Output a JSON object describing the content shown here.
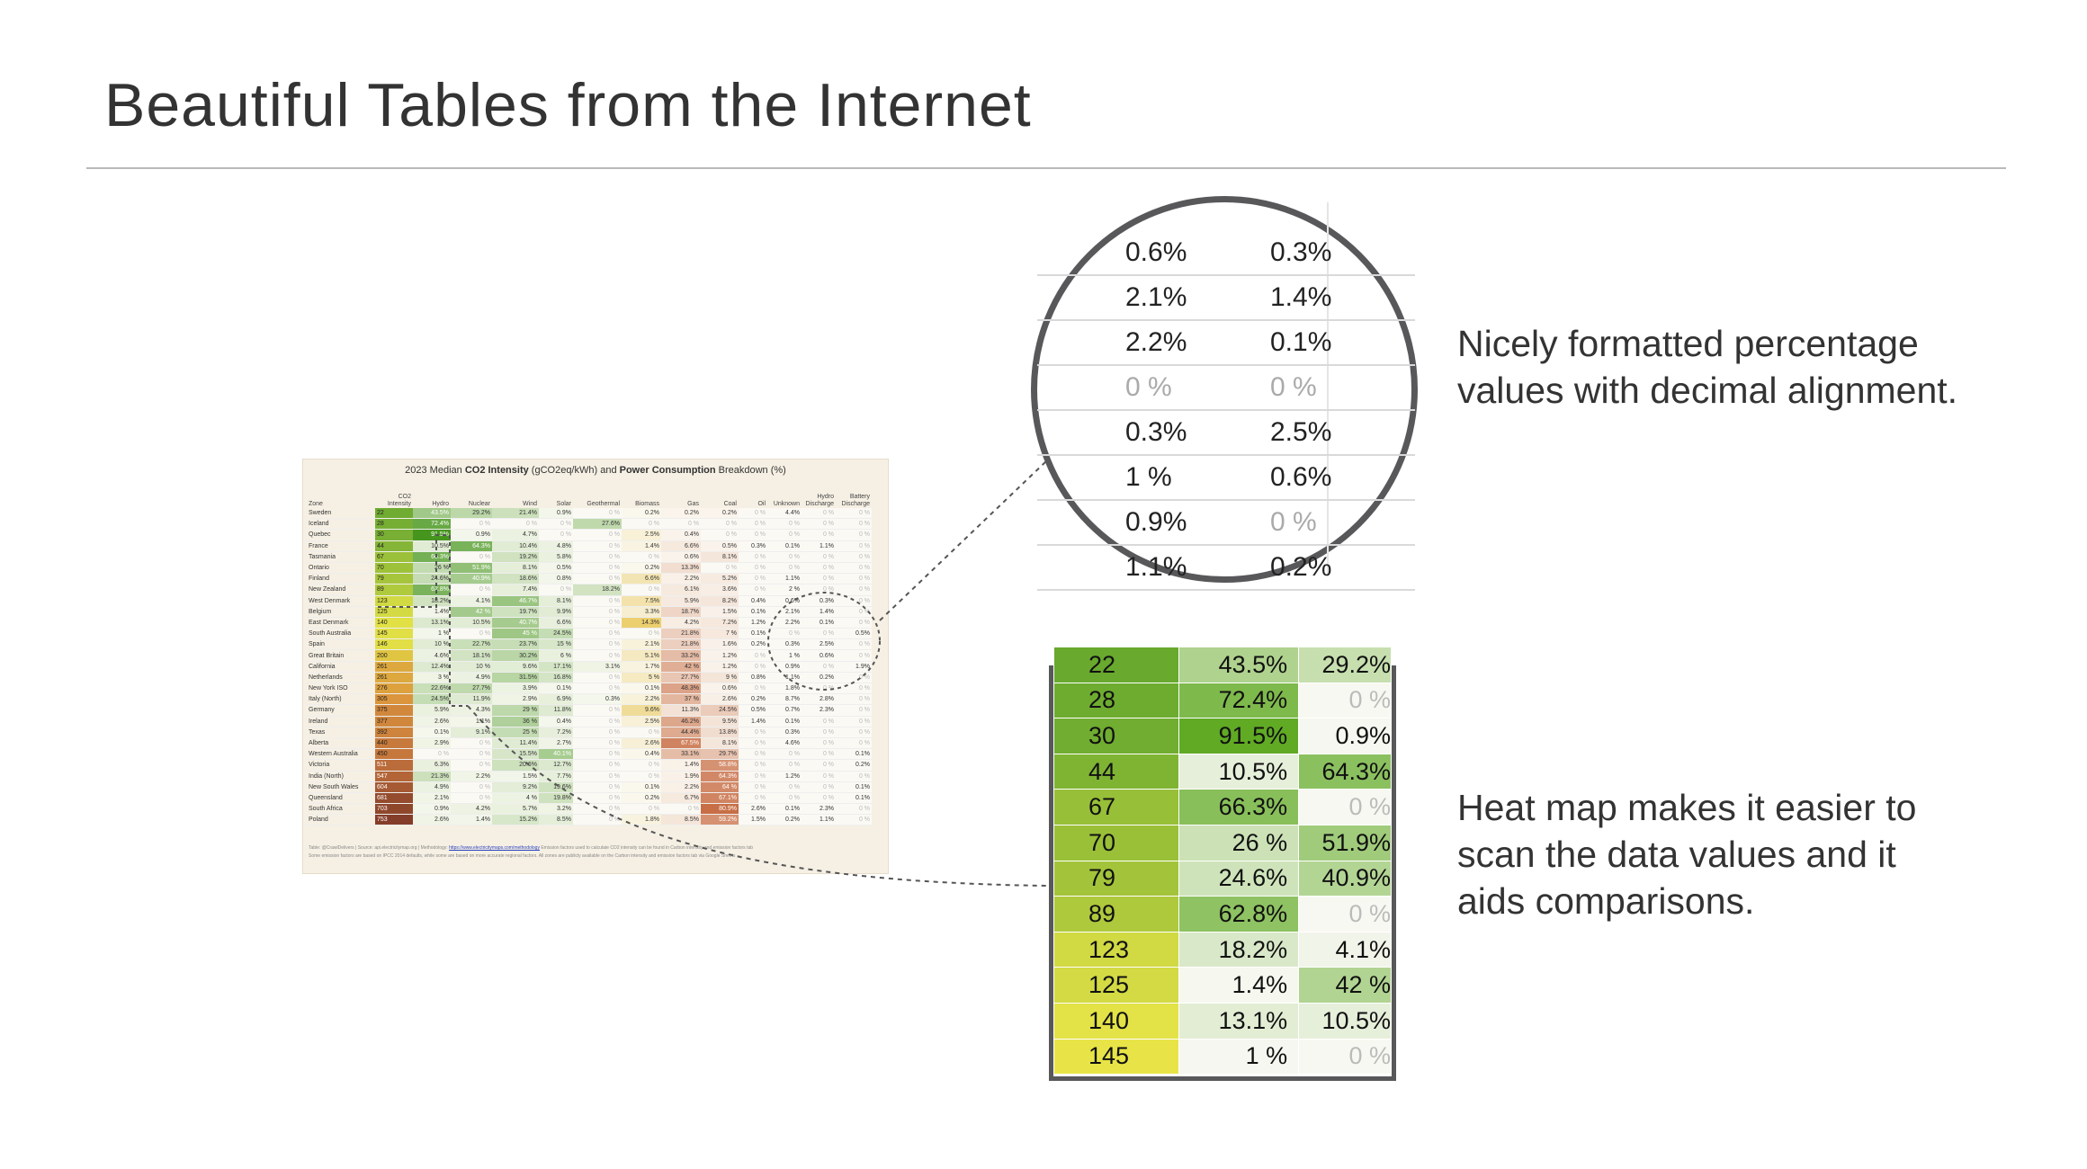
{
  "title": "Beautiful Tables from the Internet",
  "captions": {
    "percentages": "Nicely formatted percentage values with decimal alignment.",
    "heatmap": "Heat map makes it easier to scan the data values and it aids comparisons."
  },
  "mini_table": {
    "title_prefix": "2023 Median",
    "title_bold1": "CO2 Intensity",
    "title_mid": "(gCO2eq/kWh) and",
    "title_bold2": "Power Consumption",
    "title_suffix": "Breakdown (%)",
    "columns": [
      "Zone",
      "CO2 Intensity",
      "Hydro",
      "Nuclear",
      "Wind",
      "Solar",
      "Geothermal",
      "Biomass",
      "Gas",
      "Coal",
      "Oil",
      "Unknown",
      "Hydro Discharge",
      "Battery Discharge"
    ],
    "rows": [
      {
        "zone": "Sweden",
        "ci": "22",
        "v": [
          "43.5%",
          "29.2%",
          "21.4%",
          "0.9%",
          "0 %",
          "0.2%",
          "0.2%",
          "0.2%",
          "0 %",
          "4.4%",
          "0 %",
          "0 %"
        ]
      },
      {
        "zone": "Iceland",
        "ci": "28",
        "v": [
          "72.4%",
          "0 %",
          "0 %",
          "0 %",
          "27.6%",
          "0 %",
          "0 %",
          "0 %",
          "0 %",
          "0 %",
          "0 %",
          "0 %"
        ]
      },
      {
        "zone": "Quebec",
        "ci": "30",
        "v": [
          "91.5%",
          "0.9%",
          "4.7%",
          "0 %",
          "0 %",
          "2.5%",
          "0.4%",
          "0 %",
          "0 %",
          "0 %",
          "0 %",
          "0 %"
        ]
      },
      {
        "zone": "France",
        "ci": "44",
        "v": [
          "10.5%",
          "64.3%",
          "10.4%",
          "4.8%",
          "0 %",
          "1.4%",
          "6.6%",
          "0.5%",
          "0.3%",
          "0.1%",
          "1.1%",
          "0 %"
        ]
      },
      {
        "zone": "Tasmania",
        "ci": "67",
        "v": [
          "66.3%",
          "0 %",
          "19.2%",
          "5.8%",
          "0 %",
          "0 %",
          "0.6%",
          "8.1%",
          "0 %",
          "0 %",
          "0 %",
          "0 %"
        ]
      },
      {
        "zone": "Ontario",
        "ci": "70",
        "v": [
          "26 %",
          "51.9%",
          "8.1%",
          "0.5%",
          "0 %",
          "0.2%",
          "13.3%",
          "0 %",
          "0 %",
          "0 %",
          "0 %",
          "0 %"
        ]
      },
      {
        "zone": "Finland",
        "ci": "79",
        "v": [
          "24.6%",
          "40.9%",
          "18.6%",
          "0.8%",
          "0 %",
          "6.6%",
          "2.2%",
          "5.2%",
          "0 %",
          "1.1%",
          "0 %",
          "0 %"
        ]
      },
      {
        "zone": "New Zealand",
        "ci": "89",
        "v": [
          "62.8%",
          "0 %",
          "7.4%",
          "0 %",
          "18.2%",
          "0 %",
          "6.1%",
          "3.6%",
          "0 %",
          "2 %",
          "0 %",
          "0 %"
        ]
      },
      {
        "zone": "West Denmark",
        "ci": "123",
        "v": [
          "18.2%",
          "4.1%",
          "46.7%",
          "8.1%",
          "0 %",
          "7.5%",
          "5.9%",
          "8.2%",
          "0.4%",
          "0.6%",
          "0.3%",
          "0 %"
        ]
      },
      {
        "zone": "Belgium",
        "ci": "125",
        "v": [
          "1.4%",
          "42 %",
          "19.7%",
          "9.9%",
          "0 %",
          "3.3%",
          "18.7%",
          "1.5%",
          "0.1%",
          "2.1%",
          "1.4%",
          "0 %"
        ]
      },
      {
        "zone": "East Denmark",
        "ci": "140",
        "v": [
          "13.1%",
          "10.5%",
          "40.7%",
          "6.6%",
          "0 %",
          "14.3%",
          "4.2%",
          "7.2%",
          "1.2%",
          "2.2%",
          "0.1%",
          "0 %"
        ]
      },
      {
        "zone": "South Australia",
        "ci": "145",
        "v": [
          "1 %",
          "0 %",
          "45 %",
          "24.5%",
          "0 %",
          "0 %",
          "21.8%",
          "7 %",
          "0.1%",
          "0 %",
          "0 %",
          "0.5%"
        ]
      },
      {
        "zone": "Spain",
        "ci": "146",
        "v": [
          "10 %",
          "22.7%",
          "23.7%",
          "15 %",
          "0 %",
          "2.1%",
          "21.8%",
          "1.6%",
          "0.2%",
          "0.3%",
          "2.5%",
          "0 %"
        ]
      },
      {
        "zone": "Great Britain",
        "ci": "200",
        "v": [
          "4.6%",
          "18.1%",
          "30.2%",
          "6 %",
          "0 %",
          "5.1%",
          "33.2%",
          "1.2%",
          "0 %",
          "1 %",
          "0.6%",
          "0 %"
        ]
      },
      {
        "zone": "California",
        "ci": "261",
        "v": [
          "12.4%",
          "10 %",
          "9.6%",
          "17.1%",
          "3.1%",
          "1.7%",
          "42 %",
          "1.2%",
          "0 %",
          "0.9%",
          "0 %",
          "1.9%"
        ]
      },
      {
        "zone": "Netherlands",
        "ci": "261",
        "v": [
          "3 %",
          "4.9%",
          "31.5%",
          "16.8%",
          "0 %",
          "5 %",
          "27.7%",
          "9 %",
          "0.8%",
          "1.1%",
          "0.2%",
          "0 %"
        ]
      },
      {
        "zone": "New York ISO",
        "ci": "276",
        "v": [
          "22.6%",
          "27.7%",
          "3.9%",
          "0.1%",
          "0 %",
          "0.1%",
          "48.3%",
          "0.6%",
          "0 %",
          "1.8%",
          "0 %",
          "0 %"
        ]
      },
      {
        "zone": "Italy (North)",
        "ci": "305",
        "v": [
          "24.5%",
          "11.9%",
          "2.9%",
          "6.9%",
          "0.3%",
          "2.2%",
          "37 %",
          "2.6%",
          "0.2%",
          "8.7%",
          "2.8%",
          "0 %"
        ]
      },
      {
        "zone": "Germany",
        "ci": "375",
        "v": [
          "5.9%",
          "4.3%",
          "29 %",
          "11.8%",
          "0 %",
          "9.6%",
          "11.3%",
          "24.5%",
          "0.5%",
          "0.7%",
          "2.3%",
          "0 %"
        ]
      },
      {
        "zone": "Ireland",
        "ci": "377",
        "v": [
          "2.6%",
          "1.1%",
          "36 %",
          "0.4%",
          "0 %",
          "2.5%",
          "46.2%",
          "9.5%",
          "1.4%",
          "0.1%",
          "0 %",
          "0 %"
        ]
      },
      {
        "zone": "Texas",
        "ci": "392",
        "v": [
          "0.1%",
          "9.1%",
          "25 %",
          "7.2%",
          "0 %",
          "0 %",
          "44.4%",
          "13.8%",
          "0 %",
          "0.3%",
          "0 %",
          "0 %"
        ]
      },
      {
        "zone": "Alberta",
        "ci": "440",
        "v": [
          "2.9%",
          "0 %",
          "11.4%",
          "2.7%",
          "0 %",
          "2.6%",
          "67.5%",
          "8.1%",
          "0 %",
          "4.6%",
          "0 %",
          "0 %"
        ]
      },
      {
        "zone": "Western Australia",
        "ci": "450",
        "v": [
          "0 %",
          "0 %",
          "15.5%",
          "40.1%",
          "0 %",
          "0.4%",
          "33.1%",
          "29.7%",
          "0 %",
          "0 %",
          "0 %",
          "0.1%"
        ]
      },
      {
        "zone": "Victoria",
        "ci": "511",
        "v": [
          "6.3%",
          "0 %",
          "20.6%",
          "12.7%",
          "0 %",
          "0 %",
          "1.4%",
          "58.8%",
          "0 %",
          "0 %",
          "0 %",
          "0.2%"
        ]
      },
      {
        "zone": "India (North)",
        "ci": "547",
        "v": [
          "21.3%",
          "2.2%",
          "1.5%",
          "7.7%",
          "0 %",
          "0 %",
          "1.9%",
          "64.3%",
          "0 %",
          "1.2%",
          "0 %",
          "0 %"
        ]
      },
      {
        "zone": "New South Wales",
        "ci": "604",
        "v": [
          "4.9%",
          "0 %",
          "9.2%",
          "19.6%",
          "0 %",
          "0.1%",
          "2.2%",
          "64 %",
          "0 %",
          "0 %",
          "0 %",
          "0.1%"
        ]
      },
      {
        "zone": "Queensland",
        "ci": "681",
        "v": [
          "2.1%",
          "0 %",
          "4 %",
          "19.8%",
          "0 %",
          "0.2%",
          "6.7%",
          "67.1%",
          "0 %",
          "0 %",
          "0 %",
          "0.1%"
        ]
      },
      {
        "zone": "South Africa",
        "ci": "703",
        "v": [
          "0.9%",
          "4.2%",
          "5.7%",
          "3.2%",
          "0 %",
          "0 %",
          "0 %",
          "80.9%",
          "2.6%",
          "0.1%",
          "2.3%",
          "0 %"
        ]
      },
      {
        "zone": "Poland",
        "ci": "753",
        "v": [
          "2.6%",
          "1.4%",
          "15.2%",
          "8.5%",
          "0 %",
          "1.8%",
          "8.5%",
          "59.2%",
          "1.5%",
          "0.2%",
          "1.1%",
          "0 %"
        ]
      }
    ],
    "footer_line1_prefix": "Table: @CrawlDelivers | Source: api.electricitymap.org | Methodology:",
    "footer_link": "https://www.electricitymaps.com/methodology",
    "footer_line1_suffix": "Emission factors used to calculate CO2 intensity can be found in Carbon intensity and emission factors tab",
    "footer_line2": "Some emission factors are based on IPCC 2014 defaults, while some are based on more accurate regional factors. All zones are publicly available on the Carbon intensity and emission factors tab via Google Sheets"
  },
  "zoom_percent": {
    "rows": [
      [
        "0.6%",
        "0.3%"
      ],
      [
        "2.1%",
        "1.4%"
      ],
      [
        "2.2%",
        "0.1%"
      ],
      [
        "0 %",
        "0 %"
      ],
      [
        "0.3%",
        "2.5%"
      ],
      [
        "1 %",
        "0.6%"
      ],
      [
        "0.9%",
        "0 %"
      ],
      [
        "1.1%",
        "0.2%"
      ]
    ]
  },
  "zoom_heatmap": {
    "rows": [
      [
        "22",
        "43.5%",
        "29.2%"
      ],
      [
        "28",
        "72.4%",
        "0 %"
      ],
      [
        "30",
        "91.5%",
        "0.9%"
      ],
      [
        "44",
        "10.5%",
        "64.3%"
      ],
      [
        "67",
        "66.3%",
        "0 %"
      ],
      [
        "70",
        "26 %",
        "51.9%"
      ],
      [
        "79",
        "24.6%",
        "40.9%"
      ],
      [
        "89",
        "62.8%",
        "0 %"
      ],
      [
        "123",
        "18.2%",
        "4.1%"
      ],
      [
        "125",
        "1.4%",
        "42 %"
      ],
      [
        "140",
        "13.1%",
        "10.5%"
      ],
      [
        "145",
        "1 %",
        "0 %"
      ]
    ]
  }
}
